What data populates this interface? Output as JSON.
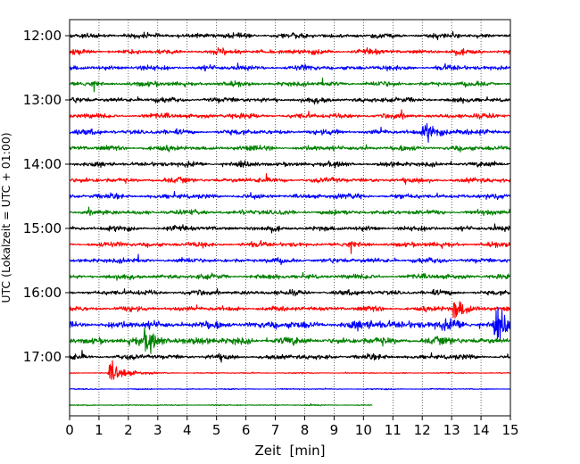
{
  "chart_data": {
    "type": "line",
    "subtype": "helicorder",
    "xlabel": "Zeit  [min]",
    "ylabel": "UTC (Lokalzeit = UTC + 01:00)",
    "xlim": [
      0,
      15
    ],
    "x_ticks": [
      "0",
      "1",
      "2",
      "3",
      "4",
      "5",
      "6",
      "7",
      "8",
      "9",
      "10",
      "11",
      "12",
      "13",
      "14",
      "15"
    ],
    "y_tick_labels": [
      "12:00",
      "13:00",
      "14:00",
      "15:00",
      "16:00",
      "17:00"
    ],
    "grid": "vertical dotted",
    "line_colors": [
      "#000000",
      "#ff0000",
      "#0000ff",
      "#008000"
    ],
    "traces": [
      {
        "start": "12:00",
        "color": "#000000",
        "duration_min": 15,
        "activity": "low"
      },
      {
        "start": "12:15",
        "color": "#ff0000",
        "duration_min": 15,
        "activity": "low"
      },
      {
        "start": "12:30",
        "color": "#0000ff",
        "duration_min": 15,
        "activity": "low"
      },
      {
        "start": "12:45",
        "color": "#008000",
        "duration_min": 15,
        "activity": "low"
      },
      {
        "start": "13:00",
        "color": "#000000",
        "duration_min": 15,
        "activity": "low"
      },
      {
        "start": "13:15",
        "color": "#ff0000",
        "duration_min": 15,
        "activity": "low"
      },
      {
        "start": "13:30",
        "color": "#0000ff",
        "duration_min": 15,
        "activity": "low",
        "event_min": 12.1
      },
      {
        "start": "13:45",
        "color": "#008000",
        "duration_min": 15,
        "activity": "low"
      },
      {
        "start": "14:00",
        "color": "#000000",
        "duration_min": 15,
        "activity": "low"
      },
      {
        "start": "14:15",
        "color": "#ff0000",
        "duration_min": 15,
        "activity": "low"
      },
      {
        "start": "14:30",
        "color": "#0000ff",
        "duration_min": 15,
        "activity": "low"
      },
      {
        "start": "14:45",
        "color": "#008000",
        "duration_min": 15,
        "activity": "low"
      },
      {
        "start": "15:00",
        "color": "#000000",
        "duration_min": 15,
        "activity": "low"
      },
      {
        "start": "15:15",
        "color": "#ff0000",
        "duration_min": 15,
        "activity": "low"
      },
      {
        "start": "15:30",
        "color": "#0000ff",
        "duration_min": 15,
        "activity": "low"
      },
      {
        "start": "15:45",
        "color": "#008000",
        "duration_min": 15,
        "activity": "low"
      },
      {
        "start": "16:00",
        "color": "#000000",
        "duration_min": 15,
        "activity": "low"
      },
      {
        "start": "16:15",
        "color": "#ff0000",
        "duration_min": 15,
        "activity": "low",
        "event_min": 13.1
      },
      {
        "start": "16:30",
        "color": "#0000ff",
        "duration_min": 15,
        "activity": "elevated",
        "event_min": 14.5
      },
      {
        "start": "16:45",
        "color": "#008000",
        "duration_min": 15,
        "activity": "elevated",
        "event_min": 2.6
      },
      {
        "start": "17:00",
        "color": "#000000",
        "duration_min": 15,
        "activity": "low"
      },
      {
        "start": "17:15",
        "color": "#ff0000",
        "duration_min": 15,
        "activity": "quiet",
        "event_min": 1.4
      },
      {
        "start": "17:30",
        "color": "#0000ff",
        "duration_min": 15,
        "activity": "quiet"
      },
      {
        "start": "17:45",
        "color": "#008000",
        "duration_min": 10.3,
        "activity": "quiet"
      }
    ]
  }
}
